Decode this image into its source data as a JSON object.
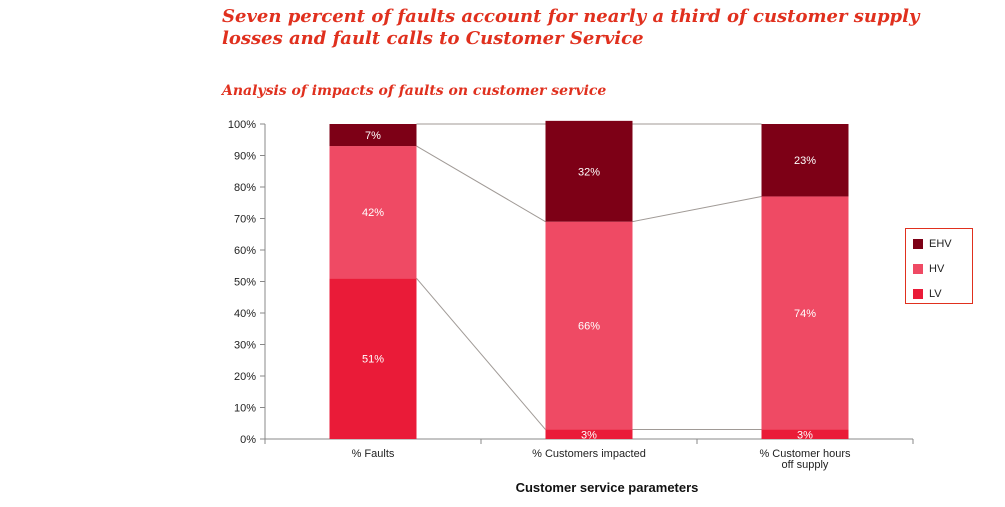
{
  "header": {
    "headline": "Seven percent of faults account for nearly a third of customer supply losses and fault calls to Customer Service",
    "subtitle": "Analysis of impacts of faults on customer service"
  },
  "colors": {
    "EHV": "#7d0016",
    "HV": "#ef4a64",
    "LV": "#ea1b38",
    "connector": "#a09a96",
    "axis": "#888888"
  },
  "chart_data": {
    "type": "bar",
    "stacked": true,
    "title": "Analysis of impacts of faults on customer service",
    "xlabel": "Customer service parameters",
    "ylabel": "",
    "ylim": [
      0,
      100
    ],
    "yticks": [
      "0%",
      "10%",
      "20%",
      "30%",
      "40%",
      "50%",
      "60%",
      "70%",
      "80%",
      "90%",
      "100%"
    ],
    "categories": [
      [
        "% Faults"
      ],
      [
        "% Customers impacted"
      ],
      [
        "% Customer hours",
        "off supply"
      ]
    ],
    "series": [
      {
        "name": "LV",
        "values": [
          51,
          3,
          3
        ],
        "labels": [
          "51%",
          "3%",
          "3%"
        ]
      },
      {
        "name": "HV",
        "values": [
          42,
          66,
          74
        ],
        "labels": [
          "42%",
          "66%",
          "74%"
        ]
      },
      {
        "name": "EHV",
        "values": [
          7,
          32,
          23
        ],
        "labels": [
          "7%",
          "32%",
          "23%"
        ]
      }
    ],
    "legend": {
      "position": "right",
      "items": [
        "EHV",
        "HV",
        "LV"
      ]
    },
    "grid": false
  }
}
